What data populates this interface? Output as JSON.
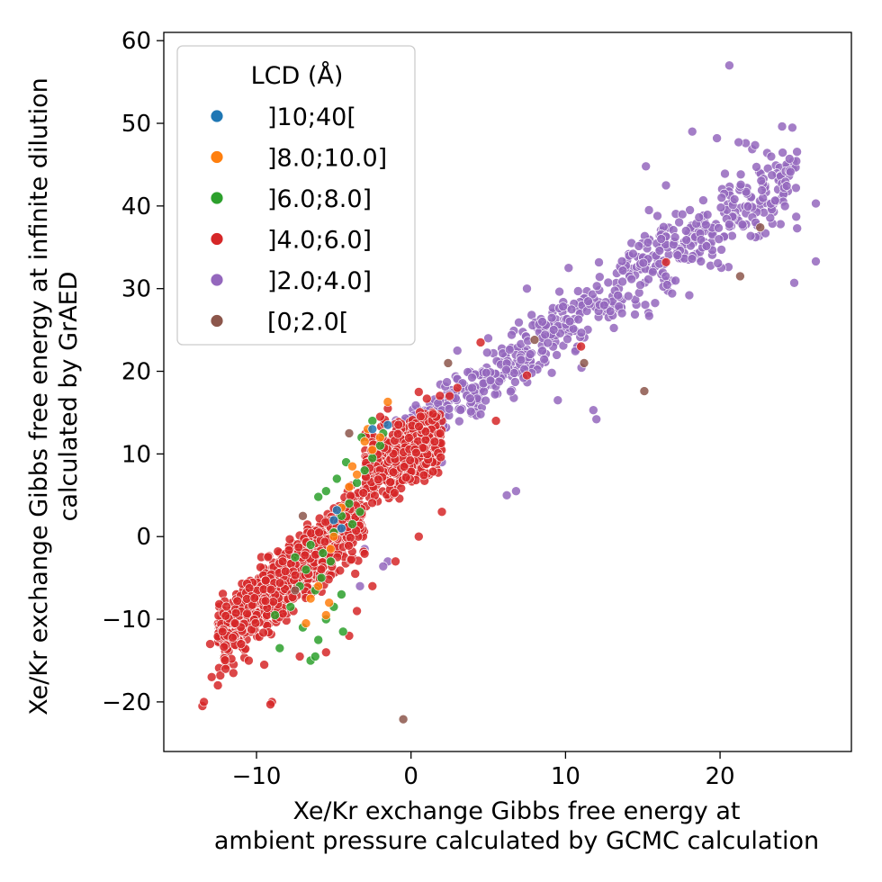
{
  "chart_data": {
    "type": "scatter",
    "title": "",
    "xlabel": [
      "Xe/Kr exchange Gibbs free energy at",
      "ambient pressure calculated by GCMC calculation"
    ],
    "ylabel": [
      "Xe/Kr exchange Gibbs free energy at infinite dilution",
      "calculated by GrAED"
    ],
    "xlim": [
      -16,
      28.5
    ],
    "ylim": [
      -26,
      61
    ],
    "xticks": [
      -10,
      0,
      10,
      20
    ],
    "yticks": [
      -20,
      -10,
      0,
      10,
      20,
      30,
      40,
      50,
      60
    ],
    "xtick_labels": [
      "−10",
      "0",
      "10",
      "20"
    ],
    "ytick_labels": [
      "−20",
      "−10",
      "0",
      "10",
      "20",
      "30",
      "40",
      "50",
      "60"
    ],
    "grid": false,
    "legend": {
      "title": "LCD (Å)",
      "placement": "top-left",
      "entries": [
        "]10;40[",
        "]8.0;10.0]",
        "]6.0;8.0]",
        "]4.0;6.0]",
        "]2.0;4.0]",
        "[0;2.0["
      ]
    },
    "series": [
      {
        "name": "]10;40[",
        "color": "#1f77b4",
        "points": [
          [
            -5.0,
            2.0
          ],
          [
            -4.5,
            1.0
          ],
          [
            -2.5,
            13.0
          ],
          [
            -1.5,
            13.5
          ],
          [
            -4.8,
            3.2
          ]
        ]
      },
      {
        "name": "]8.0;10.0]",
        "color": "#ff7f0e",
        "points": [
          [
            -1.5,
            16.3
          ],
          [
            -3.5,
            7.5
          ],
          [
            -2.5,
            10.5
          ],
          [
            -6.5,
            -7.5
          ],
          [
            -5.5,
            -9.5
          ],
          [
            -5.3,
            -8.0
          ],
          [
            -4.0,
            6.0
          ],
          [
            -4.5,
            3.5
          ],
          [
            -3.0,
            11.5
          ],
          [
            -2.8,
            13.0
          ],
          [
            -6.0,
            -6.0
          ],
          [
            -5.0,
            0.0
          ],
          [
            -3.8,
            8.5
          ],
          [
            -2.0,
            12.0
          ],
          [
            -6.8,
            -10.5
          ],
          [
            -5.2,
            -1.5
          ]
        ]
      },
      {
        "name": "]6.0;8.0]",
        "color": "#2ca02c",
        "points": [
          [
            -6.5,
            -15.0
          ],
          [
            -8.5,
            -13.5
          ],
          [
            -6.0,
            -12.5
          ],
          [
            -7.0,
            -11.0
          ],
          [
            -5.5,
            -10.0
          ],
          [
            -5.0,
            -8.5
          ],
          [
            -4.5,
            -7.0
          ],
          [
            -6.2,
            -6.5
          ],
          [
            -5.8,
            -5.0
          ],
          [
            -6.8,
            -4.0
          ],
          [
            -7.5,
            -2.5
          ],
          [
            -6.5,
            -1.0
          ],
          [
            -5.0,
            0.5
          ],
          [
            -4.5,
            2.5
          ],
          [
            -4.0,
            4.0
          ],
          [
            -5.5,
            5.5
          ],
          [
            -6.0,
            4.8
          ],
          [
            -3.5,
            6.5
          ],
          [
            -3.0,
            8.0
          ],
          [
            -2.5,
            9.5
          ],
          [
            -2.0,
            11.0
          ],
          [
            -1.8,
            12.5
          ],
          [
            -2.5,
            14.0
          ],
          [
            -3.2,
            12.0
          ],
          [
            -4.2,
            9.0
          ],
          [
            -4.8,
            7.0
          ],
          [
            -3.8,
            1.5
          ],
          [
            -5.2,
            -3.0
          ],
          [
            -7.8,
            -8.5
          ],
          [
            -8.8,
            -9.5
          ],
          [
            -6.2,
            -14.5
          ],
          [
            -4.4,
            -11.5
          ],
          [
            -7.2,
            -6.0
          ],
          [
            -5.7,
            -2.0
          ],
          [
            -3.3,
            3.0
          ]
        ]
      },
      {
        "name": "]4.0;6.0]",
        "color": "#d62728",
        "bands": {
          "x_range": [
            -13.5,
            4.5
          ],
          "count": 1350
        },
        "points": [
          [
            -13.5,
            -20.5
          ],
          [
            -13.4,
            -20.0
          ],
          [
            -12.9,
            -17.0
          ],
          [
            -12.5,
            -18.0
          ],
          [
            -12.0,
            -16.0
          ],
          [
            -11.5,
            -16.5
          ],
          [
            -10.5,
            -15.0
          ],
          [
            -9.5,
            -15.5
          ],
          [
            -9.0,
            -20.0
          ],
          [
            -9.1,
            -20.3
          ],
          [
            -13.0,
            -13.0
          ],
          [
            -12.2,
            -11.5
          ],
          [
            -11.0,
            -13.0
          ],
          [
            -7.2,
            -14.5
          ],
          [
            -5.5,
            -14.0
          ],
          [
            -4.0,
            -12.0
          ],
          [
            -3.5,
            -9.0
          ],
          [
            -2.5,
            -6.0
          ],
          [
            -1.0,
            -3.0
          ],
          [
            0.5,
            0.0
          ],
          [
            2.0,
            3.0
          ],
          [
            4.5,
            23.5
          ],
          [
            3.0,
            18.0
          ],
          [
            2.5,
            17.0
          ],
          [
            0.5,
            17.5
          ],
          [
            5.5,
            14.0
          ],
          [
            7.5,
            19.5
          ],
          [
            11.0,
            23.0
          ],
          [
            16.5,
            33.2
          ],
          [
            -1.5,
            15.5
          ],
          [
            -2.0,
            14.5
          ]
        ]
      },
      {
        "name": "]2.0;4.0]",
        "color": "#9467bd",
        "bands": {
          "x_range": [
            -1,
            26.5
          ],
          "count": 700
        },
        "points": [
          [
            20.6,
            57.0
          ],
          [
            18.2,
            49.0
          ],
          [
            19.8,
            48.2
          ],
          [
            21.2,
            47.7
          ],
          [
            24.5,
            45.7
          ],
          [
            15.2,
            44.8
          ],
          [
            16.5,
            42.5
          ],
          [
            20.1,
            41.0
          ],
          [
            22.3,
            38.0
          ],
          [
            26.2,
            40.3
          ],
          [
            26.2,
            33.3
          ],
          [
            24.8,
            30.7
          ],
          [
            15.4,
            39.5
          ],
          [
            10.2,
            32.5
          ],
          [
            7.5,
            30.0
          ],
          [
            12.5,
            28.0
          ],
          [
            6.2,
            5.0
          ],
          [
            6.8,
            5.5
          ],
          [
            4.5,
            14.8
          ],
          [
            2.0,
            9.0
          ],
          [
            -1.5,
            -3.0
          ],
          [
            -1.8,
            -3.6
          ],
          [
            -3.0,
            -1.5
          ],
          [
            -3.3,
            -6.0
          ],
          [
            9.5,
            16.5
          ],
          [
            11.8,
            15.3
          ],
          [
            12.0,
            14.2
          ],
          [
            3.0,
            22.5
          ],
          [
            5.0,
            24.0
          ],
          [
            8.5,
            26.0
          ],
          [
            0.0,
            11.0
          ]
        ]
      },
      {
        "name": "[0;2.0[",
        "color": "#8c564b",
        "points": [
          [
            -0.5,
            -22.1
          ],
          [
            15.1,
            17.6
          ],
          [
            21.3,
            31.5
          ],
          [
            22.6,
            37.4
          ],
          [
            2.4,
            21.0
          ],
          [
            8.0,
            23.8
          ],
          [
            11.2,
            21.0
          ],
          [
            -7.5,
            -6.5
          ],
          [
            -7.0,
            2.5
          ],
          [
            -4.0,
            12.5
          ]
        ]
      }
    ]
  }
}
